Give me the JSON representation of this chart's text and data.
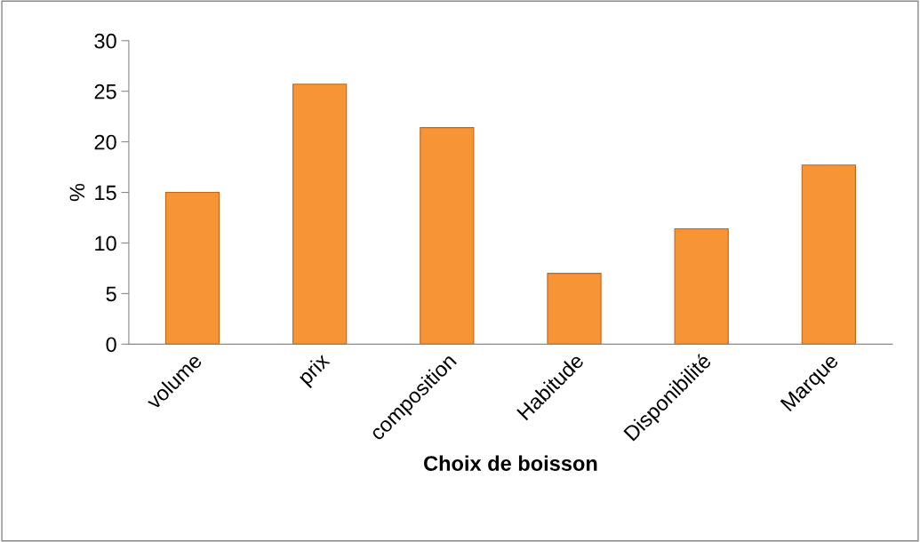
{
  "chart_data": {
    "type": "bar",
    "xlabel": "Choix de boisson",
    "ylabel": "%",
    "categories": [
      "volume",
      "prix",
      "composition",
      "Habitude",
      "Disponibilité",
      "Marque"
    ],
    "values": [
      15,
      25.7,
      21.4,
      7,
      11.4,
      17.7
    ],
    "color": "#f79436",
    "ylim": [
      0,
      30
    ],
    "yticks": [
      0,
      5,
      10,
      15,
      20,
      25,
      30
    ],
    "grid": false,
    "legend": false
  }
}
